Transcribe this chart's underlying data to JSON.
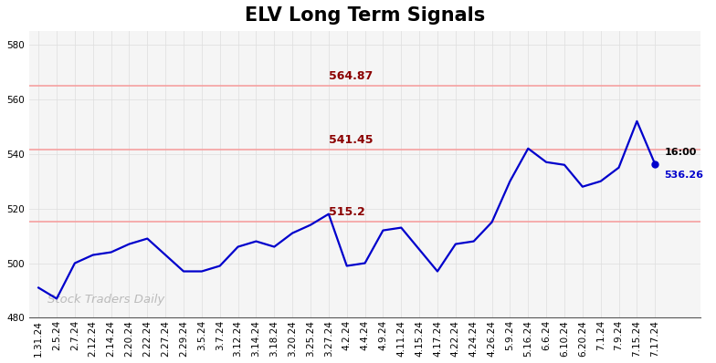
{
  "title": "ELV Long Term Signals",
  "ylim": [
    480,
    585
  ],
  "yticks": [
    480,
    500,
    520,
    540,
    560,
    580
  ],
  "background_color": "#ffffff",
  "plot_bg_color": "#f5f5f5",
  "line_color": "#0000cc",
  "line_width": 1.6,
  "hlines": [
    {
      "y": 564.87,
      "color": "#f5a0a0",
      "lw": 1.2
    },
    {
      "y": 541.45,
      "color": "#f5a0a0",
      "lw": 1.2
    },
    {
      "y": 515.2,
      "color": "#f5a0a0",
      "lw": 1.2
    }
  ],
  "hline_labels": [
    {
      "y": 564.87,
      "label": "564.87",
      "xi": 16
    },
    {
      "y": 541.45,
      "label": "541.45",
      "xi": 16
    },
    {
      "y": 515.2,
      "label": "515.2",
      "xi": 16
    }
  ],
  "hline_label_color": "#8b0000",
  "watermark": "Stock Traders Daily",
  "watermark_color": "#bbbbbb",
  "last_label_time": "16:00",
  "last_label_price": "536.26",
  "last_label_color_time": "#000000",
  "last_label_color_price": "#0000cc",
  "last_dot_color": "#0000cc",
  "x_labels": [
    "1.31.24",
    "2.5.24",
    "2.7.24",
    "2.12.24",
    "2.14.24",
    "2.20.24",
    "2.22.24",
    "2.27.24",
    "2.29.24",
    "3.5.24",
    "3.7.24",
    "3.12.24",
    "3.14.24",
    "3.18.24",
    "3.20.24",
    "3.25.24",
    "3.27.24",
    "4.2.24",
    "4.4.24",
    "4.9.24",
    "4.11.24",
    "4.15.24",
    "4.17.24",
    "4.22.24",
    "4.24.24",
    "4.26.24",
    "5.9.24",
    "5.16.24",
    "6.6.24",
    "6.10.24",
    "6.20.24",
    "7.1.24",
    "7.9.24",
    "7.15.24",
    "7.17.24"
  ],
  "y_values": [
    491,
    487,
    500,
    503,
    504,
    507,
    509,
    503,
    497,
    497,
    499,
    506,
    508,
    506,
    511,
    514,
    518,
    499,
    500,
    512,
    513,
    505,
    497,
    507,
    508,
    515,
    530,
    542,
    537,
    536,
    528,
    530,
    535,
    552,
    536.26
  ],
  "grid_color": "#dddddd",
  "title_fontsize": 15,
  "tick_fontsize": 7.5
}
